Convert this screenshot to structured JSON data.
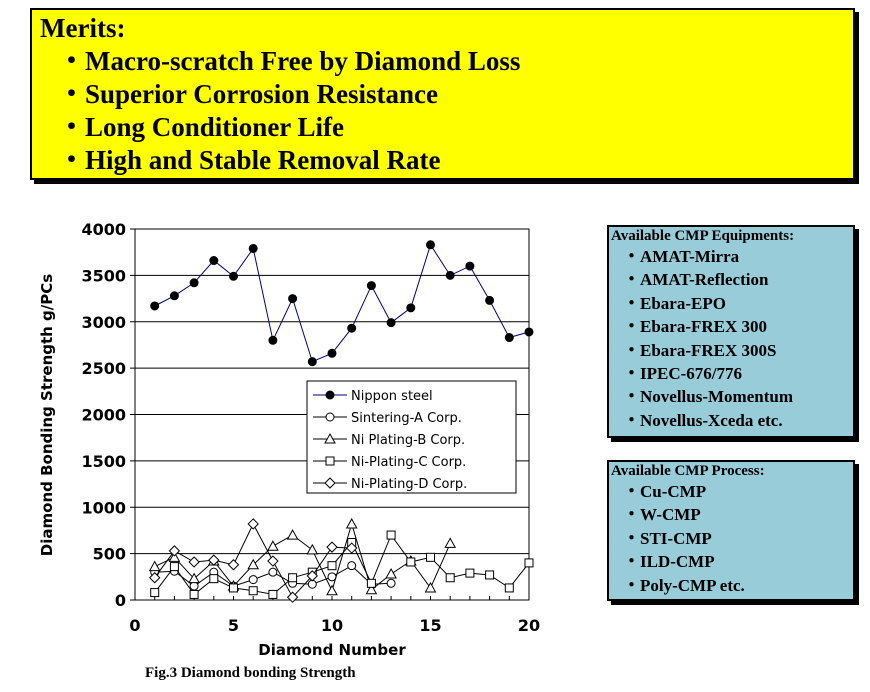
{
  "merits": {
    "title": "Merits:",
    "items": [
      "・Macro-scratch Free by Diamond Loss",
      "・Superior Corrosion Resistance",
      "・Long Conditioner Life",
      "・High and Stable Removal Rate"
    ]
  },
  "equipment_box": {
    "title": "Available CMP Equipments:",
    "items": [
      "・AMAT-Mirra",
      "・AMAT-Reflection",
      "・Ebara-EPO",
      "・Ebara-FREX 300",
      "・Ebara-FREX 300S",
      "・IPEC-676/776",
      "・Novellus-Momentum",
      "・Novellus-Xceda etc."
    ]
  },
  "process_box": {
    "title": "Available CMP Process:",
    "items": [
      "・Cu-CMP",
      "・W-CMP",
      "・STI-CMP",
      "・ILD-CMP",
      "・Poly-CMP etc."
    ]
  },
  "caption": "Fig.3 Diamond bonding Strength",
  "chart_data": {
    "type": "line",
    "xlabel": "Diamond Number",
    "ylabel": "Diamond Bonding Strength g/PCs",
    "xlim": [
      0,
      20
    ],
    "ylim": [
      0,
      4000
    ],
    "xticks": [
      0,
      5,
      10,
      15,
      20
    ],
    "yticks": [
      0,
      500,
      1000,
      1500,
      2000,
      2500,
      3000,
      3500,
      4000
    ],
    "grid": "horizontal",
    "legend_position": "center-right",
    "series": [
      {
        "name": "Nippon steel",
        "marker": "filled-circle",
        "color": "#000080",
        "x": [
          1,
          2,
          3,
          4,
          5,
          6,
          7,
          8,
          9,
          10,
          11,
          12,
          13,
          14,
          15,
          16,
          17,
          18,
          19,
          20
        ],
        "y": [
          3170,
          3280,
          3420,
          3660,
          3490,
          3790,
          2800,
          3250,
          2570,
          2660,
          2930,
          3390,
          2990,
          3150,
          3830,
          3500,
          3600,
          3230,
          2830,
          2890
        ]
      },
      {
        "name": "Sintering-A Corp.",
        "marker": "open-circle",
        "color": "#000000",
        "x": [
          1,
          2,
          3,
          4,
          5,
          6,
          7,
          8,
          9,
          10,
          11,
          12,
          13
        ],
        "y": [
          300,
          310,
          150,
          300,
          150,
          220,
          300,
          180,
          170,
          250,
          370,
          170,
          180
        ]
      },
      {
        "name": "Ni Plating-B Corp.",
        "marker": "open-triangle",
        "color": "#000000",
        "x": [
          1,
          2,
          3,
          4,
          5,
          6,
          7,
          8,
          9,
          10,
          11,
          12,
          13,
          14,
          15,
          16
        ],
        "y": [
          360,
          460,
          230,
          420,
          150,
          380,
          580,
          700,
          540,
          100,
          820,
          110,
          280,
          420,
          130,
          610
        ]
      },
      {
        "name": "Ni-Plating-C Corp.",
        "marker": "open-square",
        "color": "#000000",
        "x": [
          1,
          2,
          3,
          4,
          5,
          6,
          7,
          8,
          9,
          10,
          11,
          12,
          13,
          14,
          15,
          16,
          17,
          18,
          19,
          20
        ],
        "y": [
          80,
          360,
          60,
          230,
          130,
          100,
          60,
          240,
          300,
          370,
          620,
          180,
          700,
          410,
          460,
          240,
          290,
          270,
          130,
          400
        ]
      },
      {
        "name": "Ni-Plating-D Corp.",
        "marker": "open-diamond",
        "color": "#000000",
        "x": [
          1,
          2,
          3,
          4,
          5,
          6,
          7,
          8,
          9,
          10,
          11
        ],
        "y": [
          240,
          530,
          410,
          430,
          380,
          820,
          420,
          30,
          260,
          570,
          560
        ]
      }
    ]
  }
}
